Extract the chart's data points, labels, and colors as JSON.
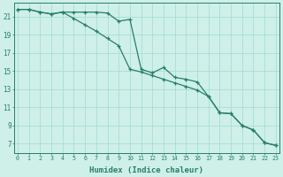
{
  "title": "",
  "xlabel": "Humidex (Indice chaleur)",
  "ylabel": "",
  "background_color": "#cef0e8",
  "grid_color": "#a8ddd4",
  "line_color": "#2a7d6a",
  "x_ticks": [
    0,
    1,
    2,
    3,
    4,
    5,
    6,
    7,
    8,
    9,
    10,
    11,
    12,
    13,
    14,
    15,
    16,
    17,
    18,
    19,
    20,
    21,
    22,
    23
  ],
  "y_ticks": [
    7,
    9,
    11,
    13,
    15,
    17,
    19,
    21
  ],
  "ylim": [
    6.0,
    22.5
  ],
  "xlim": [
    -0.3,
    23.3
  ],
  "series1_x": [
    0,
    1,
    2,
    3,
    4,
    5,
    6,
    7,
    8,
    9,
    10,
    11,
    12,
    13,
    14,
    15,
    16,
    17,
    18,
    19,
    20,
    21,
    22,
    23
  ],
  "series1_y": [
    21.8,
    21.8,
    21.5,
    21.3,
    21.5,
    21.5,
    21.5,
    21.5,
    21.4,
    20.5,
    20.7,
    15.2,
    14.8,
    15.4,
    14.3,
    14.1,
    13.8,
    12.2,
    10.4,
    10.3,
    9.0,
    8.5,
    7.1,
    6.8
  ],
  "series2_x": [
    0,
    1,
    2,
    3,
    4,
    5,
    6,
    7,
    8,
    9,
    10,
    11,
    12,
    13,
    14,
    15,
    16,
    17,
    18,
    19,
    20,
    21,
    22,
    23
  ],
  "series2_y": [
    21.8,
    21.8,
    21.5,
    21.3,
    21.5,
    20.8,
    20.1,
    19.4,
    18.6,
    17.8,
    15.2,
    14.9,
    14.5,
    14.1,
    13.7,
    13.3,
    12.9,
    12.2,
    10.4,
    10.3,
    9.0,
    8.5,
    7.1,
    6.8
  ]
}
